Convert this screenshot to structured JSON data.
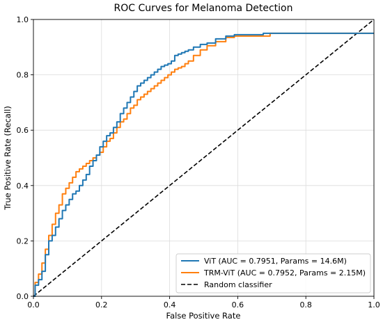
{
  "chart_data": {
    "type": "line",
    "title": "ROC Curves for Melanoma Detection",
    "xlabel": "False Positive Rate",
    "ylabel": "True Positive Rate (Recall)",
    "xlim": [
      0.0,
      1.0
    ],
    "ylim": [
      0.0,
      1.0
    ],
    "xticks": [
      "0.0",
      "0.2",
      "0.4",
      "0.6",
      "0.8",
      "1.0"
    ],
    "yticks": [
      "0.0",
      "0.2",
      "0.4",
      "0.6",
      "0.8",
      "1.0"
    ],
    "grid": true,
    "legend_position": "bottom-right",
    "series": [
      {
        "name": "ViT (AUC = 0.7951, Params = 14.6M)",
        "color": "#1f77b4",
        "style": "solid",
        "x": [
          0.0,
          0.01,
          0.02,
          0.03,
          0.04,
          0.05,
          0.06,
          0.07,
          0.08,
          0.09,
          0.1,
          0.11,
          0.12,
          0.13,
          0.14,
          0.15,
          0.16,
          0.17,
          0.18,
          0.19,
          0.2,
          0.21,
          0.22,
          0.23,
          0.24,
          0.25,
          0.26,
          0.27,
          0.28,
          0.29,
          0.3,
          0.31,
          0.32,
          0.33,
          0.34,
          0.35,
          0.36,
          0.37,
          0.38,
          0.39,
          0.4,
          0.41,
          0.42,
          0.43,
          0.44,
          0.45,
          0.46,
          0.48,
          0.5,
          0.52,
          0.55,
          0.58,
          0.6,
          0.65,
          0.7,
          0.75,
          0.8,
          0.9,
          1.0
        ],
        "y": [
          0.0,
          0.04,
          0.06,
          0.09,
          0.15,
          0.2,
          0.22,
          0.25,
          0.28,
          0.31,
          0.33,
          0.35,
          0.37,
          0.38,
          0.4,
          0.42,
          0.44,
          0.47,
          0.49,
          0.51,
          0.54,
          0.56,
          0.58,
          0.59,
          0.61,
          0.63,
          0.66,
          0.68,
          0.7,
          0.72,
          0.74,
          0.76,
          0.77,
          0.78,
          0.79,
          0.8,
          0.81,
          0.82,
          0.83,
          0.835,
          0.84,
          0.85,
          0.87,
          0.875,
          0.88,
          0.885,
          0.89,
          0.9,
          0.91,
          0.915,
          0.93,
          0.94,
          0.945,
          0.945,
          0.95,
          0.95,
          0.95,
          0.95,
          0.95
        ]
      },
      {
        "name": "TRM-ViT (AUC = 0.7952, Params = 2.15M)",
        "color": "#ff7f0e",
        "style": "solid",
        "x": [
          0.0,
          0.01,
          0.02,
          0.03,
          0.04,
          0.05,
          0.06,
          0.07,
          0.08,
          0.09,
          0.1,
          0.11,
          0.12,
          0.13,
          0.14,
          0.15,
          0.16,
          0.17,
          0.18,
          0.19,
          0.2,
          0.21,
          0.22,
          0.23,
          0.24,
          0.25,
          0.26,
          0.27,
          0.28,
          0.29,
          0.3,
          0.31,
          0.32,
          0.33,
          0.34,
          0.35,
          0.36,
          0.37,
          0.38,
          0.39,
          0.4,
          0.41,
          0.42,
          0.43,
          0.44,
          0.45,
          0.46,
          0.48,
          0.5,
          0.52,
          0.55,
          0.58,
          0.6,
          0.65,
          0.69,
          0.7,
          0.75,
          0.8,
          0.9,
          1.0
        ],
        "y": [
          0.0,
          0.05,
          0.08,
          0.12,
          0.17,
          0.22,
          0.26,
          0.3,
          0.33,
          0.37,
          0.39,
          0.41,
          0.43,
          0.45,
          0.46,
          0.47,
          0.48,
          0.49,
          0.5,
          0.51,
          0.52,
          0.54,
          0.56,
          0.57,
          0.59,
          0.61,
          0.63,
          0.64,
          0.66,
          0.68,
          0.69,
          0.71,
          0.72,
          0.73,
          0.74,
          0.75,
          0.76,
          0.77,
          0.78,
          0.79,
          0.8,
          0.81,
          0.82,
          0.825,
          0.83,
          0.84,
          0.85,
          0.87,
          0.89,
          0.905,
          0.92,
          0.935,
          0.94,
          0.94,
          0.94,
          0.95,
          0.95,
          0.95,
          0.95,
          0.95
        ]
      },
      {
        "name": "Random classifier",
        "color": "#000000",
        "style": "dashed",
        "x": [
          0.0,
          1.0
        ],
        "y": [
          0.0,
          1.0
        ]
      }
    ]
  }
}
